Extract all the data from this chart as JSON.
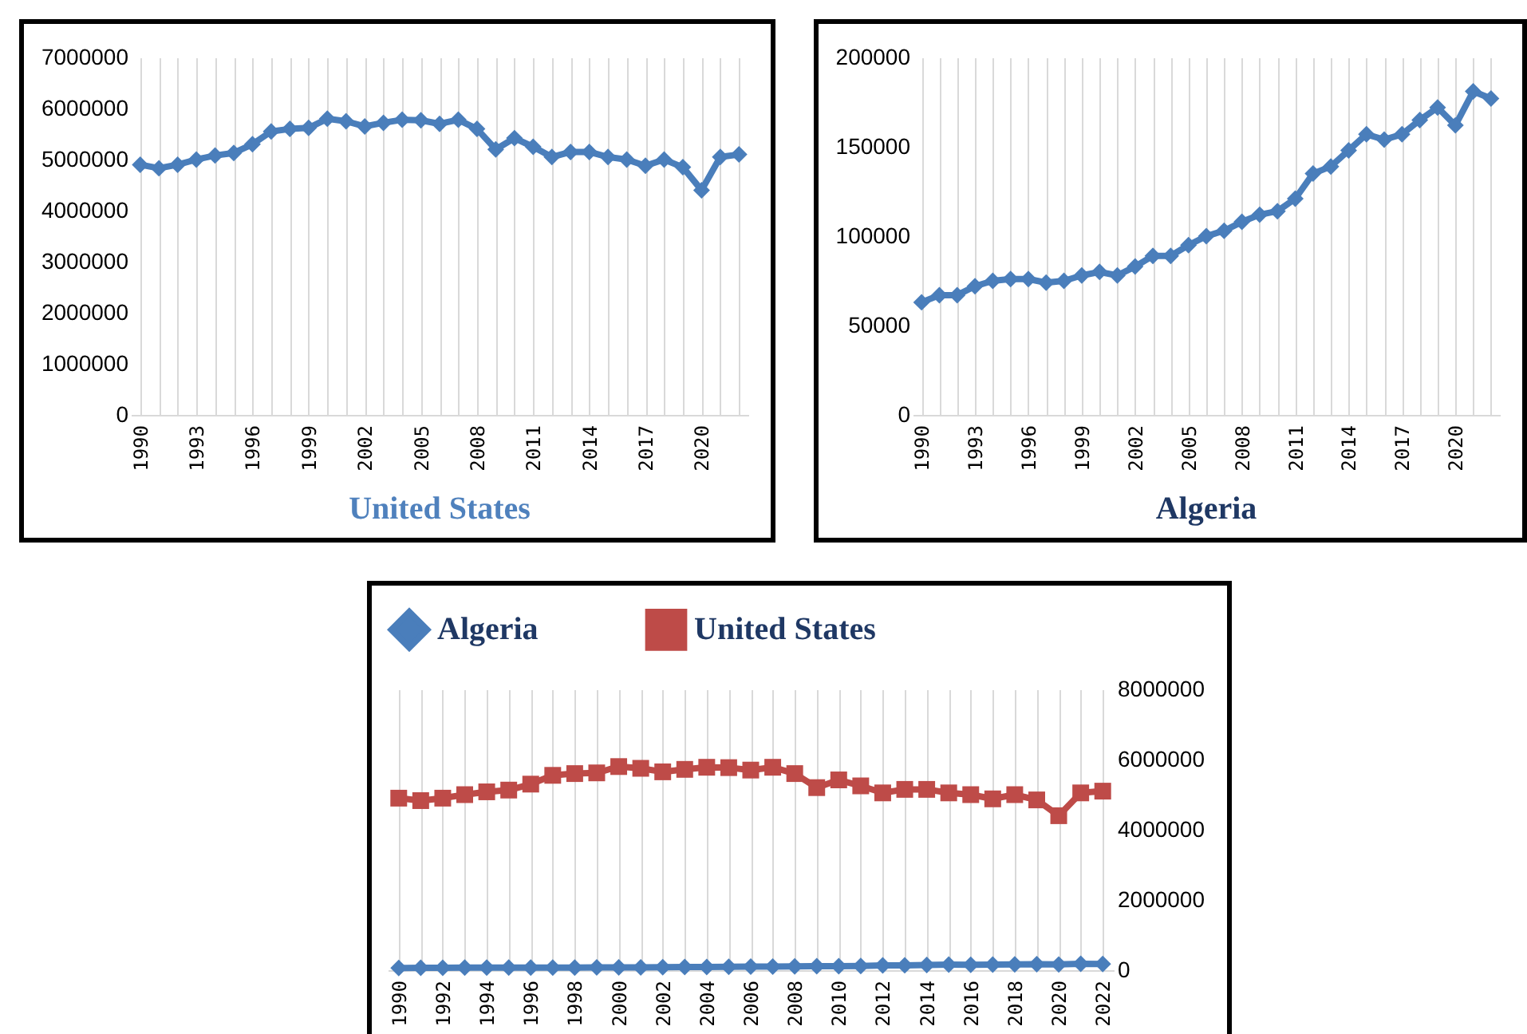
{
  "chart_data": [
    {
      "type": "line",
      "title": "United States",
      "categories": [
        "1990",
        null,
        null,
        "1993",
        null,
        null,
        "1996",
        null,
        null,
        "1999",
        null,
        null,
        "2002",
        null,
        null,
        "2005",
        null,
        null,
        "2008",
        null,
        null,
        "2011",
        null,
        null,
        "2014",
        null,
        null,
        "2017",
        null,
        null,
        "2020",
        null,
        null
      ],
      "series": [
        {
          "color": "#4a7ebb",
          "values": [
            4900000,
            4830000,
            4900000,
            5000000,
            5080000,
            5130000,
            5300000,
            5550000,
            5600000,
            5620000,
            5800000,
            5750000,
            5650000,
            5720000,
            5780000,
            5770000,
            5700000,
            5780000,
            5600000,
            5200000,
            5420000,
            5250000,
            5050000,
            5150000,
            5150000,
            5050000,
            5000000,
            4880000,
            5000000,
            4850000,
            4400000,
            5050000,
            5100000
          ]
        }
      ],
      "ylim": [
        0,
        7000000
      ],
      "yticks": [
        0,
        1000000,
        2000000,
        3000000,
        4000000,
        5000000,
        6000000,
        7000000
      ],
      "grid": "x",
      "marker": "diamond"
    },
    {
      "type": "line",
      "title": "Algeria",
      "categories": [
        "1990",
        null,
        null,
        "1993",
        null,
        null,
        "1996",
        null,
        null,
        "1999",
        null,
        null,
        "2002",
        null,
        null,
        "2005",
        null,
        null,
        "2008",
        null,
        null,
        "2011",
        null,
        null,
        "2014",
        null,
        null,
        "2017",
        null,
        null,
        "2020",
        null,
        null
      ],
      "series": [
        {
          "color": "#4a7ebb",
          "values": [
            63000,
            67000,
            67000,
            72000,
            75000,
            76000,
            76000,
            74000,
            75000,
            78000,
            80000,
            78000,
            83000,
            89000,
            89000,
            95000,
            100000,
            103000,
            108000,
            112000,
            114000,
            121000,
            135000,
            139000,
            148000,
            157000,
            154000,
            157000,
            165000,
            172000,
            162000,
            181000,
            177000
          ]
        }
      ],
      "ylim": [
        0,
        200000
      ],
      "yticks": [
        0,
        50000,
        100000,
        150000,
        200000
      ],
      "grid": "x",
      "marker": "diamond"
    },
    {
      "type": "line",
      "categories": [
        "1990",
        null,
        "1992",
        null,
        "1994",
        null,
        "1996",
        null,
        "1998",
        null,
        "2000",
        null,
        "2002",
        null,
        "2004",
        null,
        "2006",
        null,
        "2008",
        null,
        "2010",
        null,
        "2012",
        null,
        "2014",
        null,
        "2016",
        null,
        "2018",
        null,
        "2020",
        null,
        "2022"
      ],
      "series": [
        {
          "name": "Algeria",
          "color": "#4a7ebb",
          "marker": "diamond",
          "axis": "y2",
          "values": [
            63000,
            67000,
            67000,
            72000,
            75000,
            76000,
            76000,
            74000,
            75000,
            78000,
            80000,
            78000,
            83000,
            89000,
            89000,
            95000,
            100000,
            103000,
            108000,
            112000,
            114000,
            121000,
            135000,
            139000,
            148000,
            157000,
            154000,
            157000,
            165000,
            172000,
            162000,
            181000,
            177000
          ]
        },
        {
          "name": "United States",
          "color": "#be4b48",
          "marker": "square",
          "axis": "y2",
          "values": [
            4900000,
            4830000,
            4900000,
            5000000,
            5080000,
            5130000,
            5300000,
            5550000,
            5600000,
            5620000,
            5800000,
            5750000,
            5650000,
            5720000,
            5780000,
            5770000,
            5700000,
            5780000,
            5600000,
            5200000,
            5420000,
            5250000,
            5050000,
            5150000,
            5150000,
            5050000,
            5000000,
            4880000,
            5000000,
            4850000,
            4400000,
            5050000,
            5100000
          ]
        }
      ],
      "y2lim": [
        0,
        8000000
      ],
      "y2ticks": [
        0,
        2000000,
        4000000,
        6000000,
        8000000
      ],
      "grid": "x",
      "legend": "top"
    }
  ]
}
